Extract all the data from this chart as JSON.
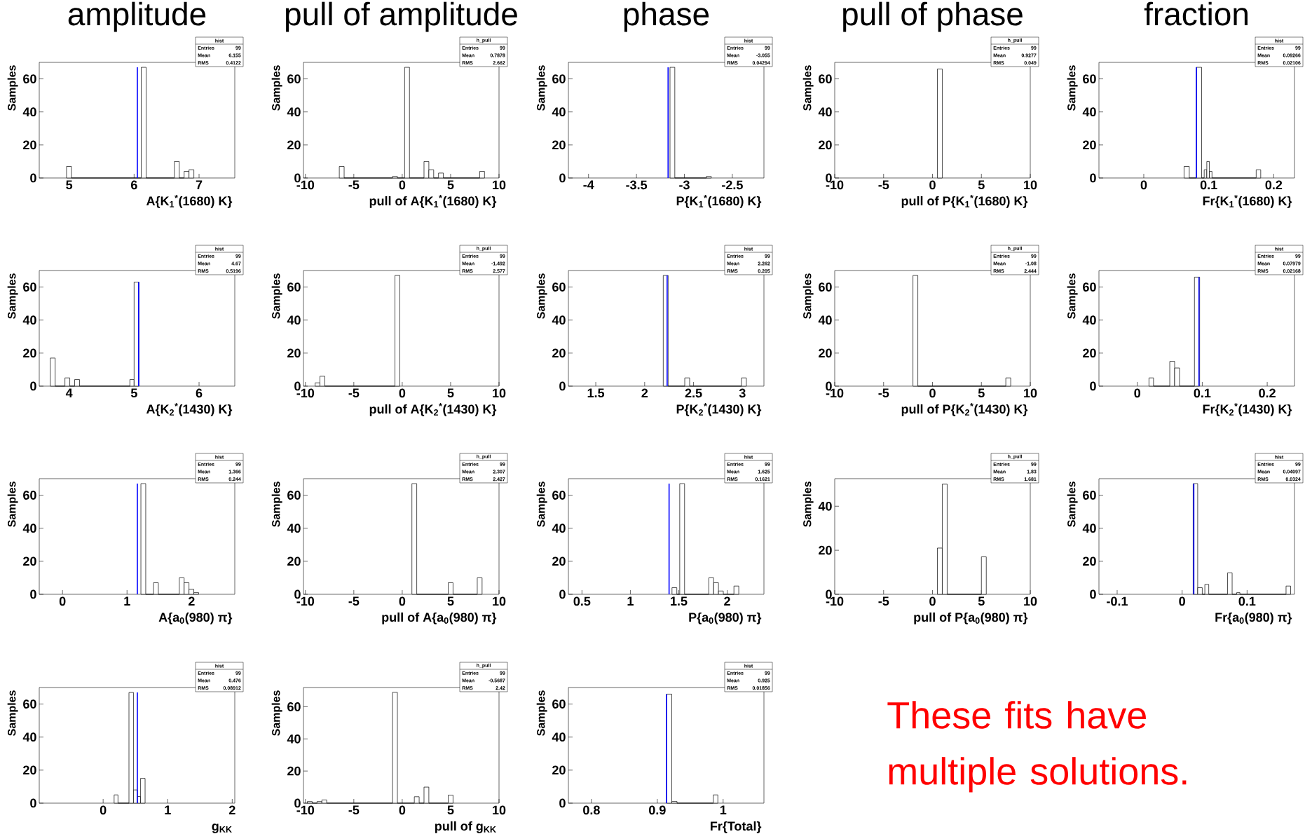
{
  "chart_data": [
    {
      "type": "histogram",
      "title": "amplitude",
      "xlabel": "A{K$_{1}$$^{*}$(1680) K}",
      "ylabel": "Samples",
      "color": "#000000",
      "bins": [
        4.96,
        5.035,
        6.11,
        6.185,
        6.62,
        6.695,
        6.77,
        6.845,
        6.92
      ],
      "values": [
        7,
        0,
        67,
        0,
        10,
        0,
        4,
        5
      ],
      "xlim": [
        4.54,
        7.55
      ],
      "ylim": [
        0,
        70
      ],
      "xticks": [
        5,
        6,
        7
      ],
      "yticks": [
        0,
        20,
        40,
        60
      ],
      "ref_lines": [
        {
          "axis": "x",
          "value": 6.05,
          "color": "#0000ff"
        }
      ],
      "annotations": [
        "hist",
        "Entries",
        "99",
        "Mean",
        "6.155",
        "RMS",
        "0.4122"
      ]
    },
    {
      "type": "histogram",
      "title": "pull of amplitude",
      "xlabel": "pull of A{K$_{1}$$^{*}$(1680) K}",
      "ylabel": "Samples",
      "color": "#000000",
      "bins": [
        -6.5,
        -6,
        -1,
        -0.5,
        0.25,
        0.75,
        2.25,
        2.75,
        3.25,
        3.75,
        4.25,
        8,
        8.5
      ],
      "values": [
        7,
        0,
        1,
        0,
        67,
        0,
        10,
        5,
        0,
        3,
        0,
        4
      ],
      "xlim": [
        -10.2,
        10
      ],
      "ylim": [
        0,
        70
      ],
      "xticks": [
        -10,
        -5,
        0,
        5,
        10
      ],
      "yticks": [
        0,
        20,
        40,
        60
      ],
      "annotations": [
        "h_pull",
        "Entries",
        "99",
        "Mean",
        "0.7878",
        "RMS",
        "2.662"
      ]
    },
    {
      "type": "histogram",
      "title": "phase",
      "xlabel": "P{K$_{1}$$^{*}$(1680) K}",
      "ylabel": "Samples",
      "color": "#000000",
      "bins": [
        -3.15,
        -3.1,
        -2.77,
        -2.72
      ],
      "values": [
        67,
        0,
        1
      ],
      "xlim": [
        -4.21,
        -2.17
      ],
      "ylim": [
        0,
        70
      ],
      "xticks": [
        -4,
        -3.5,
        -3,
        -2.5
      ],
      "yticks": [
        0,
        20,
        40,
        60
      ],
      "ref_lines": [
        {
          "axis": "x",
          "value": -3.17,
          "color": "#0000ff"
        }
      ],
      "annotations": [
        "hist",
        "Entries",
        "99",
        "Mean",
        "-3.055",
        "RMS",
        "0.04294"
      ]
    },
    {
      "type": "histogram",
      "title": "pull of phase",
      "xlabel": "pull of P{K$_{1}$$^{*}$(1680) K}",
      "ylabel": "Samples",
      "color": "#000000",
      "bins": [
        0.5,
        1.0
      ],
      "values": [
        66
      ],
      "xlim": [
        -10,
        10
      ],
      "ylim": [
        0,
        70
      ],
      "xticks": [
        -10,
        -5,
        0,
        5,
        10
      ],
      "yticks": [
        0,
        20,
        40,
        60
      ],
      "annotations": [
        "h_pull",
        "Entries",
        "99",
        "Mean",
        "0.9277",
        "RMS",
        "0.049"
      ]
    },
    {
      "type": "histogram",
      "title": "fraction",
      "xlabel": "Fr{K$_{1}$$^{*}$(1680) K}",
      "ylabel": "Samples",
      "color": "#000000",
      "bins": [
        0.062,
        0.07,
        0.081,
        0.089,
        0.093,
        0.097,
        0.101,
        0.105,
        0.173,
        0.18
      ],
      "values": [
        7,
        0,
        67,
        0,
        5,
        10,
        4,
        0,
        5
      ],
      "xlim": [
        -0.069,
        0.232
      ],
      "ylim": [
        0,
        70
      ],
      "xticks": [
        0,
        0.1,
        0.2
      ],
      "yticks": [
        0,
        20,
        40,
        60
      ],
      "ref_lines": [
        {
          "axis": "x",
          "value": 0.081,
          "color": "#0000ff"
        }
      ],
      "annotations": [
        "hist",
        "Entries",
        "99",
        "Mean",
        "0.09266",
        "RMS",
        "0.02106"
      ]
    },
    {
      "type": "histogram",
      "xlabel": "A{K$_{2}$$^{*}$(1430) K}",
      "ylabel": "Samples",
      "color": "#000000",
      "bins": [
        3.71,
        3.785,
        3.935,
        4.01,
        4.085,
        4.16,
        4.935,
        5.0,
        5.075
      ],
      "values": [
        17,
        0,
        5,
        0,
        4,
        0,
        4,
        63
      ],
      "xlim": [
        3.54,
        6.55
      ],
      "ylim": [
        0,
        70
      ],
      "xticks": [
        4,
        5,
        6
      ],
      "yticks": [
        0,
        20,
        40,
        60
      ],
      "ref_lines": [
        {
          "axis": "x",
          "value": 5.07,
          "color": "#0000ff"
        }
      ],
      "annotations": [
        "hist",
        "Entries",
        "99",
        "Mean",
        "4.67",
        "RMS",
        "0.5196"
      ]
    },
    {
      "type": "histogram",
      "xlabel": "pull of A{K$_{2}$$^{*}$(1430) K}",
      "ylabel": "Samples",
      "color": "#000000",
      "bins": [
        -9,
        -8.5,
        -8,
        -0.75,
        -0.25
      ],
      "values": [
        2,
        6,
        0,
        67
      ],
      "xlim": [
        -10.2,
        10
      ],
      "ylim": [
        0,
        70
      ],
      "xticks": [
        -10,
        -5,
        0,
        5,
        10
      ],
      "yticks": [
        0,
        20,
        40,
        60
      ],
      "annotations": [
        "h_pull",
        "Entries",
        "99",
        "Mean",
        "-1.492",
        "RMS",
        "2.577"
      ]
    },
    {
      "type": "histogram",
      "xlabel": "P{K$_{2}$$^{*}$(1430) K}",
      "ylabel": "Samples",
      "color": "#000000",
      "bins": [
        2.19,
        2.24,
        2.41,
        2.46,
        2.99,
        3.04
      ],
      "values": [
        67,
        0,
        5,
        0,
        5
      ],
      "xlim": [
        1.22,
        3.22
      ],
      "ylim": [
        0,
        70
      ],
      "xticks": [
        1.5,
        2,
        2.5,
        3
      ],
      "yticks": [
        0,
        20,
        40,
        60
      ],
      "ref_lines": [
        {
          "axis": "x",
          "value": 2.23,
          "color": "#0000ff"
        }
      ],
      "annotations": [
        "hist",
        "Entries",
        "99",
        "Mean",
        "2.262",
        "RMS",
        "0.205"
      ]
    },
    {
      "type": "histogram",
      "xlabel": "pull of P{K$_{2}$$^{*}$(1430) K}",
      "ylabel": "Samples",
      "color": "#000000",
      "bins": [
        -2,
        -1.5,
        7.5,
        8
      ],
      "values": [
        67,
        0,
        5
      ],
      "xlim": [
        -10,
        10
      ],
      "ylim": [
        0,
        70
      ],
      "xticks": [
        -10,
        -5,
        0,
        5,
        10
      ],
      "yticks": [
        0,
        20,
        40,
        60
      ],
      "annotations": [
        "h_pull",
        "Entries",
        "99",
        "Mean",
        "-1.08",
        "RMS",
        "2.444"
      ]
    },
    {
      "type": "histogram",
      "xlabel": "Fr{K$_{2}$$^{*}$(1430) K}",
      "ylabel": "Samples",
      "color": "#000000",
      "bins": [
        0.018,
        0.025,
        0.05,
        0.0575,
        0.065,
        0.088,
        0.096
      ],
      "values": [
        5,
        0,
        15,
        11,
        0,
        66
      ],
      "xlim": [
        -0.059,
        0.242
      ],
      "ylim": [
        0,
        70
      ],
      "xticks": [
        0,
        0.1,
        0.2
      ],
      "yticks": [
        0,
        20,
        40,
        60
      ],
      "ref_lines": [
        {
          "axis": "x",
          "value": 0.095,
          "color": "#0000ff"
        }
      ],
      "annotations": [
        "hist",
        "Entries",
        "99",
        "Mean",
        "0.07979",
        "RMS",
        "0.02168"
      ]
    },
    {
      "type": "histogram",
      "xlabel": "A{a$_{0}$(980) π}",
      "ylabel": "Samples",
      "color": "#000000",
      "bins": [
        1.215,
        1.29,
        1.41,
        1.485,
        1.81,
        1.885,
        1.96,
        2.035,
        2.11
      ],
      "values": [
        67,
        0,
        7,
        0,
        10,
        7,
        3,
        1
      ],
      "xlim": [
        -0.36,
        2.67
      ],
      "ylim": [
        0,
        70
      ],
      "xticks": [
        0,
        1,
        2
      ],
      "yticks": [
        0,
        20,
        40,
        60
      ],
      "ref_lines": [
        {
          "axis": "x",
          "value": 1.16,
          "color": "#0000ff"
        }
      ],
      "annotations": [
        "hist",
        "Entries",
        "99",
        "Mean",
        "1.366",
        "RMS",
        "0.244"
      ]
    },
    {
      "type": "histogram",
      "xlabel": "pull of A{a$_{0}$(980) π}",
      "ylabel": "Samples",
      "color": "#000000",
      "bins": [
        1,
        1.5,
        4.75,
        5.25,
        7.75,
        8.25
      ],
      "values": [
        67,
        0,
        7,
        0,
        10
      ],
      "xlim": [
        -10.2,
        10
      ],
      "ylim": [
        0,
        70
      ],
      "xticks": [
        -10,
        -5,
        0,
        5,
        10
      ],
      "yticks": [
        0,
        20,
        40,
        60
      ],
      "annotations": [
        "h_pull",
        "Entries",
        "99",
        "Mean",
        "2.307",
        "RMS",
        "2.427"
      ]
    },
    {
      "type": "histogram",
      "xlabel": "P{a$_{0}$(980) π}",
      "ylabel": "Samples",
      "color": "#000000",
      "bins": [
        1.43,
        1.48,
        1.51,
        1.56,
        1.81,
        1.86,
        1.91,
        1.96,
        2.07,
        2.12
      ],
      "values": [
        4,
        0,
        67,
        0,
        10,
        7,
        2,
        0,
        5
      ],
      "xlim": [
        0.36,
        2.38
      ],
      "ylim": [
        0,
        70
      ],
      "xticks": [
        0.5,
        1,
        1.5,
        2
      ],
      "yticks": [
        0,
        20,
        40,
        60
      ],
      "ref_lines": [
        {
          "axis": "x",
          "value": 1.4,
          "color": "#0000ff"
        }
      ],
      "annotations": [
        "hist",
        "Entries",
        "99",
        "Mean",
        "1.625",
        "RMS",
        "0.1621"
      ]
    },
    {
      "type": "histogram",
      "xlabel": "pull of P{a$_{0}$(980) π}",
      "ylabel": "Samples",
      "color": "#000000",
      "bins": [
        0.5,
        1,
        1.5,
        5,
        5.5
      ],
      "values": [
        21,
        50,
        0,
        17
      ],
      "xlim": [
        -10,
        10
      ],
      "ylim": [
        0,
        52.5
      ],
      "xticks": [
        -10,
        -5,
        0,
        5,
        10
      ],
      "yticks": [
        0,
        20,
        40
      ],
      "annotations": [
        "h_pull",
        "Entries",
        "99",
        "Mean",
        "1.83",
        "RMS",
        "1.681"
      ]
    },
    {
      "type": "histogram",
      "xlabel": "Fr{a$_{0}$(980) π}",
      "ylabel": "Samples",
      "color": "#000000",
      "bins": [
        0.017,
        0.024,
        0.031,
        0.035,
        0.041,
        0.07,
        0.077,
        0.084,
        0.089,
        0.16,
        0.167
      ],
      "values": [
        67,
        4,
        0,
        6,
        0,
        13,
        0,
        1,
        0,
        5
      ],
      "xlim": [
        -0.128,
        0.173
      ],
      "ylim": [
        0,
        70
      ],
      "xticks": [
        -0.1,
        0,
        0.1
      ],
      "yticks": [
        0,
        20,
        40,
        60
      ],
      "ref_lines": [
        {
          "axis": "x",
          "value": 0.018,
          "color": "#0000ff"
        }
      ],
      "annotations": [
        "hist",
        "Entries",
        "99",
        "Mean",
        "0.04097",
        "RMS",
        "0.0324"
      ]
    },
    {
      "type": "histogram",
      "xlabel": "g$_{KK}$",
      "ylabel": "Samples",
      "color": "#000000",
      "bins": [
        0.17,
        0.23,
        0.4,
        0.47,
        0.53,
        0.58,
        0.65
      ],
      "values": [
        5,
        0,
        67,
        8,
        4,
        15
      ],
      "xlim": [
        -0.99,
        2.04
      ],
      "ylim": [
        0,
        70
      ],
      "xticks": [
        0,
        1,
        2
      ],
      "yticks": [
        0,
        20,
        40,
        60
      ],
      "ref_lines": [
        {
          "axis": "x",
          "value": 0.53,
          "color": "#0000ff"
        }
      ],
      "annotations": [
        "hist",
        "Entries",
        "99",
        "Mean",
        "0.476",
        "RMS",
        "0.08912"
      ]
    },
    {
      "type": "histogram",
      "xlabel": "pull of g$_{KK}$",
      "ylabel": "Samples",
      "color": "#000000",
      "bins": [
        -9.8,
        -9.3,
        -8.8,
        -8.3,
        -7.8,
        -1,
        -0.5,
        1.25,
        1.75,
        2.25,
        2.75,
        4.75,
        5.25
      ],
      "values": [
        1,
        0,
        1,
        2,
        0,
        69,
        0,
        4,
        0,
        10,
        0,
        5
      ],
      "xlim": [
        -10.2,
        10
      ],
      "ylim": [
        0,
        72
      ],
      "xticks": [
        -10,
        -5,
        0,
        5,
        10
      ],
      "yticks": [
        0,
        20,
        40,
        60
      ],
      "annotations": [
        "h_pull",
        "Entries",
        "99",
        "Mean",
        "-0.5687",
        "RMS",
        "2.42"
      ]
    },
    {
      "type": "histogram",
      "xlabel": "Fr{Total}",
      "ylabel": "Samples",
      "color": "#000000",
      "bins": [
        0.914,
        0.922,
        0.93,
        0.985,
        0.992
      ],
      "values": [
        66,
        1,
        0,
        5
      ],
      "xlim": [
        0.765,
        1.062
      ],
      "ylim": [
        0,
        70
      ],
      "xticks": [
        0.8,
        0.9,
        1
      ],
      "yticks": [
        0,
        20,
        40,
        60
      ],
      "ref_lines": [
        {
          "axis": "x",
          "value": 0.914,
          "color": "#0000ff"
        }
      ],
      "annotations": [
        "hist",
        "Entries",
        "99",
        "Mean",
        "0.925",
        "RMS",
        "0.01856"
      ]
    },
    {
      "type": "other",
      "color": "#ff0000",
      "annotations": [
        "These fits have multiple solutions."
      ]
    }
  ]
}
